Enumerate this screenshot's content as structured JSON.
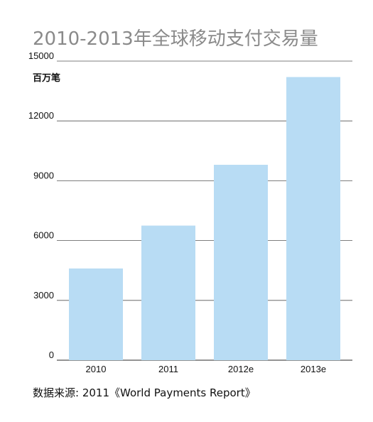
{
  "title": "2010-2013年全球移动支付交易量",
  "source": "数据来源: 2011《World Payments Report》",
  "colors": {
    "bar": "#b8dcf4",
    "gridline": "#555555",
    "title": "#8a8a8a"
  },
  "chart_data": {
    "type": "bar",
    "title": "2010-2013年全球移动支付交易量",
    "ylabel": "百万笔",
    "xlabel": "",
    "categories": [
      "2010",
      "2011",
      "2012e",
      "2013e"
    ],
    "values": [
      4600,
      6750,
      9800,
      14200
    ],
    "ylim": [
      0,
      15000
    ],
    "yticks": [
      "0",
      "3000",
      "6000",
      "9000",
      "12000",
      "15000"
    ],
    "grid": true,
    "legend": "none"
  }
}
